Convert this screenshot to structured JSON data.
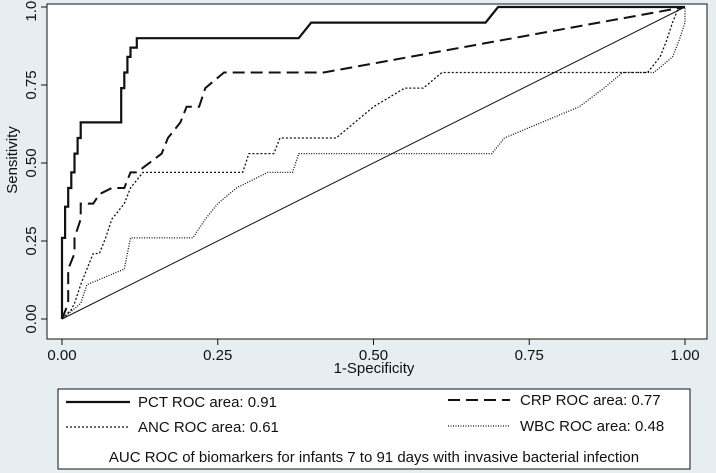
{
  "chart_data": {
    "type": "line",
    "xlabel": "1-Specificity",
    "ylabel": "Sensitivity",
    "xlim": [
      0,
      1
    ],
    "ylim": [
      0,
      1
    ],
    "xticks": [
      "0.00",
      "0.25",
      "0.50",
      "0.75",
      "1.00"
    ],
    "yticks": [
      "0.00",
      "0.25",
      "0.50",
      "0.75",
      "1.00"
    ],
    "grid": false,
    "legend_placement": "bottom",
    "legend_note": "AUC ROC of biomarkers for infants 7 to 91 days with invasive bacterial infection",
    "colors": {
      "background": "#e6eef2",
      "plot_bg": "#ffffff",
      "line": "#111111"
    },
    "series": [
      {
        "name": "PCT ROC area: 0.91",
        "style": "solid",
        "x": [
          0,
          0,
          0.005,
          0.005,
          0.01,
          0.01,
          0.015,
          0.015,
          0.02,
          0.02,
          0.025,
          0.025,
          0.03,
          0.03,
          0.095,
          0.095,
          0.1,
          0.1,
          0.105,
          0.105,
          0.11,
          0.11,
          0.12,
          0.12,
          0.38,
          0.4,
          0.68,
          0.7,
          1
        ],
        "y": [
          0,
          0.26,
          0.26,
          0.36,
          0.36,
          0.42,
          0.42,
          0.47,
          0.47,
          0.53,
          0.53,
          0.58,
          0.58,
          0.63,
          0.63,
          0.74,
          0.74,
          0.79,
          0.79,
          0.84,
          0.84,
          0.87,
          0.87,
          0.9,
          0.9,
          0.95,
          0.95,
          1,
          1
        ]
      },
      {
        "name": "CRP ROC area: 0.77",
        "style": "dashed",
        "x": [
          0,
          0.01,
          0.01,
          0.02,
          0.02,
          0.03,
          0.03,
          0.05,
          0.06,
          0.08,
          0.085,
          0.1,
          0.11,
          0.12,
          0.16,
          0.17,
          0.19,
          0.2,
          0.21,
          0.22,
          0.23,
          0.26,
          0.27,
          0.42,
          1
        ],
        "y": [
          0,
          0.05,
          0.16,
          0.21,
          0.26,
          0.32,
          0.37,
          0.37,
          0.4,
          0.42,
          0.42,
          0.42,
          0.47,
          0.47,
          0.53,
          0.58,
          0.63,
          0.68,
          0.68,
          0.68,
          0.74,
          0.79,
          0.79,
          0.79,
          1
        ]
      },
      {
        "name": "ANC ROC area: 0.61",
        "style": "dotted",
        "x": [
          0,
          0.015,
          0.02,
          0.03,
          0.04,
          0.05,
          0.06,
          0.07,
          0.08,
          0.1,
          0.11,
          0.13,
          0.29,
          0.3,
          0.34,
          0.35,
          0.44,
          0.47,
          0.5,
          0.55,
          0.58,
          0.61,
          0.94,
          0.96,
          0.97,
          0.98,
          0.99,
          1
        ],
        "y": [
          0,
          0.03,
          0.05,
          0.11,
          0.16,
          0.21,
          0.21,
          0.26,
          0.32,
          0.37,
          0.42,
          0.47,
          0.47,
          0.53,
          0.53,
          0.58,
          0.58,
          0.63,
          0.68,
          0.74,
          0.74,
          0.79,
          0.79,
          0.84,
          0.89,
          0.95,
          1,
          1
        ]
      },
      {
        "name": "WBC ROC area: 0.48",
        "style": "dotted-fine",
        "x": [
          0,
          0.03,
          0.04,
          0.1,
          0.11,
          0.21,
          0.23,
          0.25,
          0.28,
          0.33,
          0.37,
          0.38,
          0.69,
          0.71,
          0.77,
          0.83,
          0.87,
          0.9,
          0.92,
          0.95,
          0.98,
          0.99,
          1,
          1
        ],
        "y": [
          0,
          0.05,
          0.11,
          0.16,
          0.26,
          0.26,
          0.32,
          0.37,
          0.42,
          0.47,
          0.47,
          0.53,
          0.53,
          0.58,
          0.63,
          0.68,
          0.74,
          0.79,
          0.79,
          0.79,
          0.84,
          0.89,
          0.95,
          1
        ]
      }
    ]
  }
}
